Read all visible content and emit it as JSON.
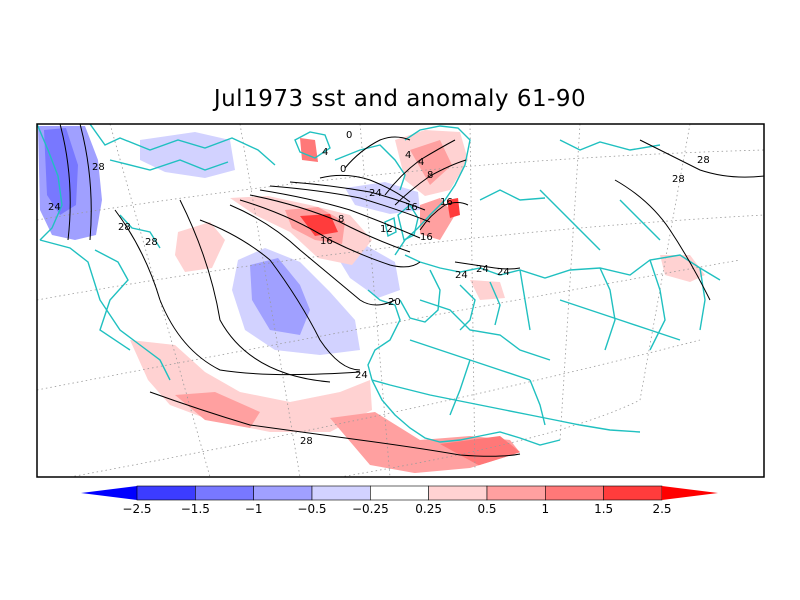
{
  "title": "Jul1973 sst and anomaly 61-90",
  "contour_labels": [
    "28",
    "24",
    "28",
    "28",
    "0",
    "4",
    "0",
    "4",
    "4",
    "8",
    "16",
    "24",
    "8",
    "12",
    "16",
    "16",
    "16",
    "20",
    "24",
    "24",
    "24",
    "24",
    "28",
    "28",
    "28"
  ],
  "colorbar": {
    "labels": [
      "-2.5",
      "-1.5",
      "-1",
      "-0.5",
      "-0.25",
      "0.25",
      "0.5",
      "1",
      "1.5",
      "2.5"
    ],
    "colors": [
      "#0000ff",
      "#3c3cff",
      "#7878ff",
      "#a0a0ff",
      "#d2d2ff",
      "#ffffff",
      "#ffd2d2",
      "#ffa0a0",
      "#ff7878",
      "#ff3c3c",
      "#ff0000"
    ]
  },
  "colors": {
    "coast": "#20c0c0",
    "contour": "#000000",
    "grid": "#9a9a9a"
  }
}
